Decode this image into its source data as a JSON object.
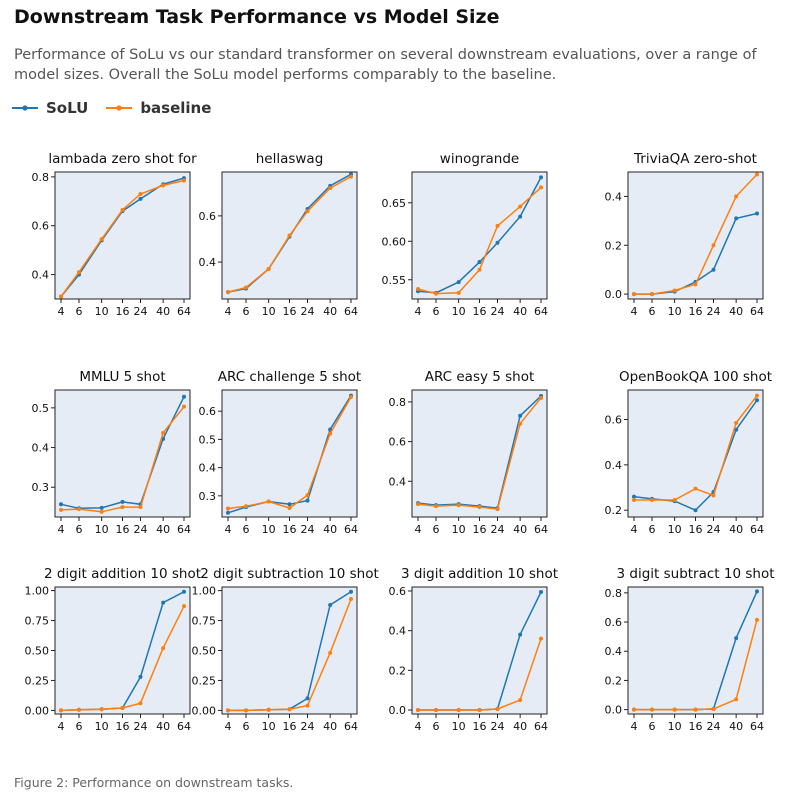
{
  "title": "Downstream Task Performance vs Model Size",
  "subtitle": "Performance of SoLu vs our standard transformer on several downstream evaluations, over a range of model sizes. Overall the SoLu model performs comparably to the baseline.",
  "caption": "Figure 2: Performance on downstream tasks.",
  "legend": [
    {
      "name": "SoLU",
      "color": "#1f77b4"
    },
    {
      "name": "baseline",
      "color": "#ff7f0e"
    }
  ],
  "chart_data": [
    {
      "type": "line",
      "title": "lambada zero shot for",
      "x": [
        4,
        6,
        10,
        16,
        24,
        40,
        64
      ],
      "xticks": [
        "4",
        "6",
        "10",
        "16",
        "24",
        "40",
        "64"
      ],
      "ylim": [
        0.3,
        0.82
      ],
      "yticks": [
        0.4,
        0.6,
        0.8
      ],
      "ytick_labels": [
        "0.4",
        "0.6",
        "0.8"
      ],
      "series": [
        {
          "name": "SoLU",
          "values": [
            0.31,
            0.4,
            0.54,
            0.66,
            0.71,
            0.77,
            0.795
          ]
        },
        {
          "name": "baseline",
          "values": [
            0.31,
            0.41,
            0.545,
            0.665,
            0.73,
            0.765,
            0.785
          ]
        }
      ]
    },
    {
      "type": "line",
      "title": "hellaswag",
      "x": [
        4,
        6,
        10,
        16,
        24,
        40,
        64
      ],
      "xticks": [
        "4",
        "6",
        "10",
        "16",
        "24",
        "40",
        "64"
      ],
      "ylim": [
        0.24,
        0.79
      ],
      "yticks": [
        0.4,
        0.6
      ],
      "ytick_labels": [
        "0.4",
        "0.6"
      ],
      "series": [
        {
          "name": "SoLU",
          "values": [
            0.27,
            0.285,
            0.37,
            0.51,
            0.63,
            0.73,
            0.78
          ]
        },
        {
          "name": "baseline",
          "values": [
            0.27,
            0.29,
            0.37,
            0.515,
            0.62,
            0.72,
            0.77
          ]
        }
      ]
    },
    {
      "type": "line",
      "title": "winogrande",
      "x": [
        4,
        6,
        10,
        16,
        24,
        40,
        64
      ],
      "xticks": [
        "4",
        "6",
        "10",
        "16",
        "24",
        "40",
        "64"
      ],
      "ylim": [
        0.525,
        0.69
      ],
      "yticks": [
        0.55,
        0.6,
        0.65
      ],
      "ytick_labels": [
        "0.55",
        "0.60",
        "0.65"
      ],
      "series": [
        {
          "name": "SoLU",
          "values": [
            0.535,
            0.533,
            0.547,
            0.573,
            0.598,
            0.632,
            0.683
          ]
        },
        {
          "name": "baseline",
          "values": [
            0.538,
            0.532,
            0.533,
            0.563,
            0.62,
            0.645,
            0.67
          ]
        }
      ]
    },
    {
      "type": "line",
      "title": "TriviaQA zero-shot",
      "x": [
        4,
        6,
        10,
        16,
        24,
        40,
        64
      ],
      "xticks": [
        "4",
        "6",
        "10",
        "16",
        "24",
        "40",
        "64"
      ],
      "ylim": [
        -0.02,
        0.5
      ],
      "yticks": [
        0.0,
        0.2,
        0.4
      ],
      "ytick_labels": [
        "0.0",
        "0.2",
        "0.4"
      ],
      "series": [
        {
          "name": "SoLU",
          "values": [
            0.0,
            0.0,
            0.01,
            0.05,
            0.1,
            0.31,
            0.33
          ]
        },
        {
          "name": "baseline",
          "values": [
            0.0,
            0.0,
            0.015,
            0.04,
            0.2,
            0.4,
            0.49
          ]
        }
      ]
    },
    {
      "type": "line",
      "title": "MMLU 5 shot",
      "x": [
        4,
        6,
        10,
        16,
        24,
        40,
        64
      ],
      "xticks": [
        "4",
        "6",
        "10",
        "16",
        "24",
        "40",
        "64"
      ],
      "ylim": [
        0.225,
        0.545
      ],
      "yticks": [
        0.3,
        0.4,
        0.5
      ],
      "ytick_labels": [
        "0.3",
        "0.4",
        "0.5"
      ],
      "series": [
        {
          "name": "SoLU",
          "values": [
            0.257,
            0.247,
            0.248,
            0.263,
            0.257,
            0.422,
            0.528
          ]
        },
        {
          "name": "baseline",
          "values": [
            0.243,
            0.245,
            0.238,
            0.25,
            0.25,
            0.437,
            0.503
          ]
        }
      ]
    },
    {
      "type": "line",
      "title": "ARC challenge 5 shot",
      "x": [
        4,
        6,
        10,
        16,
        24,
        40,
        64
      ],
      "xticks": [
        "4",
        "6",
        "10",
        "16",
        "24",
        "40",
        "64"
      ],
      "ylim": [
        0.225,
        0.675
      ],
      "yticks": [
        0.3,
        0.4,
        0.5,
        0.6
      ],
      "ytick_labels": [
        "0.3",
        "0.4",
        "0.5",
        "0.6"
      ],
      "series": [
        {
          "name": "SoLU",
          "values": [
            0.24,
            0.26,
            0.28,
            0.27,
            0.283,
            0.535,
            0.655
          ]
        },
        {
          "name": "baseline",
          "values": [
            0.255,
            0.263,
            0.28,
            0.257,
            0.302,
            0.52,
            0.65
          ]
        }
      ]
    },
    {
      "type": "line",
      "title": "ARC easy 5 shot",
      "x": [
        4,
        6,
        10,
        16,
        24,
        40,
        64
      ],
      "xticks": [
        "4",
        "6",
        "10",
        "16",
        "24",
        "40",
        "64"
      ],
      "ylim": [
        0.22,
        0.86
      ],
      "yticks": [
        0.4,
        0.6,
        0.8
      ],
      "ytick_labels": [
        "0.4",
        "0.6",
        "0.8"
      ],
      "series": [
        {
          "name": "SoLU",
          "values": [
            0.29,
            0.28,
            0.285,
            0.275,
            0.265,
            0.73,
            0.83
          ]
        },
        {
          "name": "baseline",
          "values": [
            0.285,
            0.275,
            0.28,
            0.27,
            0.26,
            0.69,
            0.82
          ]
        }
      ]
    },
    {
      "type": "line",
      "title": "OpenBookQA 100 shot",
      "x": [
        4,
        6,
        10,
        16,
        24,
        40,
        64
      ],
      "xticks": [
        "4",
        "6",
        "10",
        "16",
        "24",
        "40",
        "64"
      ],
      "ylim": [
        0.17,
        0.73
      ],
      "yticks": [
        0.2,
        0.4,
        0.6
      ],
      "ytick_labels": [
        "0.2",
        "0.4",
        "0.6"
      ],
      "series": [
        {
          "name": "SoLU",
          "values": [
            0.26,
            0.25,
            0.24,
            0.2,
            0.28,
            0.555,
            0.685
          ]
        },
        {
          "name": "baseline",
          "values": [
            0.245,
            0.245,
            0.245,
            0.295,
            0.265,
            0.585,
            0.705
          ]
        }
      ]
    },
    {
      "type": "line",
      "title": "2 digit addition 10 shot",
      "x": [
        4,
        6,
        10,
        16,
        24,
        40,
        64
      ],
      "xticks": [
        "4",
        "6",
        "10",
        "16",
        "24",
        "40",
        "64"
      ],
      "ylim": [
        -0.03,
        1.03
      ],
      "yticks": [
        0.0,
        0.25,
        0.5,
        0.75,
        1.0
      ],
      "ytick_labels": [
        "0.00",
        "0.25",
        "0.50",
        "0.75",
        "1.00"
      ],
      "series": [
        {
          "name": "SoLU",
          "values": [
            0.0,
            0.005,
            0.01,
            0.02,
            0.28,
            0.9,
            0.99
          ]
        },
        {
          "name": "baseline",
          "values": [
            0.0,
            0.005,
            0.01,
            0.02,
            0.06,
            0.52,
            0.87
          ]
        }
      ]
    },
    {
      "type": "line",
      "title": "2 digit subtraction 10 shot",
      "x": [
        4,
        6,
        10,
        16,
        24,
        40,
        64
      ],
      "xticks": [
        "4",
        "6",
        "10",
        "16",
        "24",
        "40",
        "64"
      ],
      "ylim": [
        -0.03,
        1.03
      ],
      "yticks": [
        0.0,
        0.25,
        0.5,
        0.75,
        1.0
      ],
      "ytick_labels": [
        "0.00",
        "0.25",
        "0.50",
        "0.75",
        "1.00"
      ],
      "series": [
        {
          "name": "SoLU",
          "values": [
            0.0,
            0.0,
            0.005,
            0.01,
            0.1,
            0.88,
            0.99
          ]
        },
        {
          "name": "baseline",
          "values": [
            0.0,
            0.0,
            0.005,
            0.01,
            0.04,
            0.48,
            0.93
          ]
        }
      ]
    },
    {
      "type": "line",
      "title": "3 digit addition 10 shot",
      "x": [
        4,
        6,
        10,
        16,
        24,
        40,
        64
      ],
      "xticks": [
        "4",
        "6",
        "10",
        "16",
        "24",
        "40",
        "64"
      ],
      "ylim": [
        -0.02,
        0.62
      ],
      "yticks": [
        0.0,
        0.2,
        0.4,
        0.6
      ],
      "ytick_labels": [
        "0.0",
        "0.2",
        "0.4",
        "0.6"
      ],
      "series": [
        {
          "name": "SoLU",
          "values": [
            0.0,
            0.0,
            0.0,
            0.0,
            0.005,
            0.38,
            0.595
          ]
        },
        {
          "name": "baseline",
          "values": [
            0.0,
            0.0,
            0.0,
            0.0,
            0.005,
            0.05,
            0.36
          ]
        }
      ]
    },
    {
      "type": "line",
      "title": "3 digit subtract 10 shot",
      "x": [
        4,
        6,
        10,
        16,
        24,
        40,
        64
      ],
      "xticks": [
        "4",
        "6",
        "10",
        "16",
        "24",
        "40",
        "64"
      ],
      "ylim": [
        -0.03,
        0.84
      ],
      "yticks": [
        0.0,
        0.2,
        0.4,
        0.6,
        0.8
      ],
      "ytick_labels": [
        "0.0",
        "0.2",
        "0.4",
        "0.6",
        "0.8"
      ],
      "series": [
        {
          "name": "SoLU",
          "values": [
            0.0,
            0.0,
            0.0,
            0.0,
            0.005,
            0.49,
            0.81
          ]
        },
        {
          "name": "baseline",
          "values": [
            0.0,
            0.0,
            0.0,
            0.0,
            0.005,
            0.07,
            0.615
          ]
        }
      ]
    }
  ]
}
